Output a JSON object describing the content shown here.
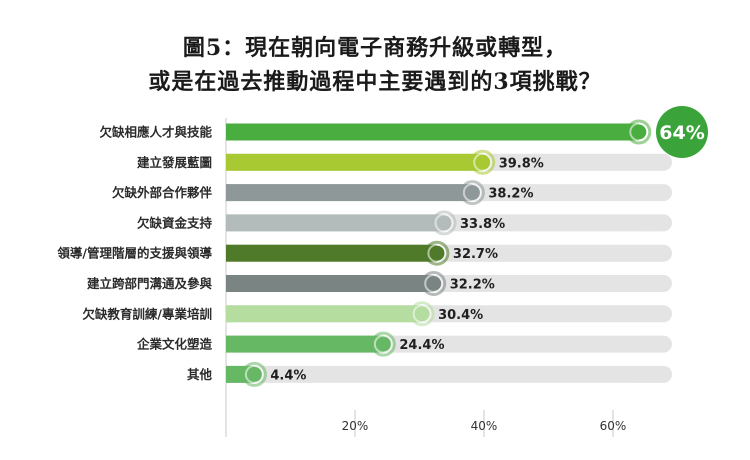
{
  "chart_data": {
    "type": "bar",
    "orientation": "horizontal",
    "title_lines": [
      "圖5：現在朝向電子商務升級或轉型，",
      "或是在過去推動過程中主要遇到的3項挑戰？"
    ],
    "categories": [
      "欠缺相應人才與技能",
      "建立發展藍圖",
      "欠缺外部合作夥伴",
      "欠缺資金支持",
      "領導/管理階層的支援與領導",
      "建立跨部門溝通及參與",
      "欠缺教育訓練/專業培訓",
      "企業文化塑造",
      "其他"
    ],
    "values": [
      64,
      39.8,
      38.2,
      33.8,
      32.7,
      32.2,
      30.4,
      24.4,
      4.4
    ],
    "value_labels": [
      "64%",
      "39.8%",
      "38.2%",
      "33.8%",
      "32.7%",
      "32.2%",
      "30.4%",
      "24.4%",
      "4.4%"
    ],
    "xlim": [
      0,
      70
    ],
    "xticks": [
      20,
      40,
      60
    ],
    "xtick_labels": [
      "20%",
      "40%",
      "60%"
    ],
    "colors": [
      "#4aad3f",
      "#a8c931",
      "#8e9898",
      "#b3bcbb",
      "#4f7a2a",
      "#7a8583",
      "#b5dda0",
      "#67b865",
      "#67b865"
    ],
    "track_color": "#e4e4e4",
    "gridline_color": "#c8c8c8",
    "highlight_color": "#3aa33a"
  }
}
